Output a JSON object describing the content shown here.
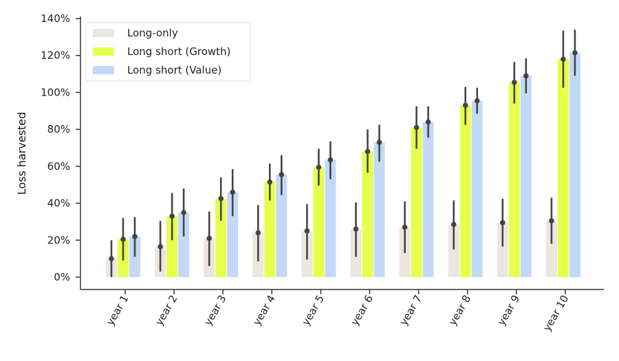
{
  "chart_data": {
    "type": "bar",
    "title": "",
    "xlabel": "",
    "ylabel": "Loss harvested",
    "ylim": [
      0,
      140
    ],
    "yticks": [
      0,
      20,
      40,
      60,
      80,
      100,
      120,
      140
    ],
    "ytick_suffix": "%",
    "grid": false,
    "legend_position": "top-left",
    "categories": [
      "year 1",
      "year 2",
      "year 3",
      "year 4",
      "year 5",
      "year 6",
      "year 7",
      "year 8",
      "year 9",
      "year 10"
    ],
    "series": [
      {
        "name": "Long-only",
        "color": "#ebe6df",
        "values": [
          10,
          16.5,
          21,
          24,
          25,
          26,
          27,
          28.5,
          29.5,
          30.5
        ],
        "error_low": [
          0,
          3,
          6,
          8.5,
          9.5,
          11,
          13,
          15,
          16.5,
          18
        ],
        "error_high": [
          20,
          30.5,
          35.5,
          39,
          39.5,
          40.5,
          41,
          41.5,
          42.5,
          43
        ]
      },
      {
        "name": "Long short (Growth)",
        "color": "#e6ff4d",
        "values": [
          20.5,
          33,
          42.5,
          51.5,
          59.5,
          68,
          81,
          93,
          105.5,
          118
        ],
        "error_low": [
          9,
          20,
          30.5,
          41.5,
          49.5,
          56.5,
          69.5,
          82.5,
          94,
          102.5
        ],
        "error_high": [
          32,
          45.5,
          54,
          61.5,
          69.5,
          80,
          92.5,
          103,
          116.5,
          133.5
        ]
      },
      {
        "name": "Long short (Value)",
        "color": "#c3d9fa",
        "values": [
          22,
          35,
          46,
          55.5,
          63.5,
          73,
          84,
          95.5,
          109,
          121.5
        ],
        "error_low": [
          11,
          22,
          33,
          44.5,
          53,
          62.5,
          75.5,
          88.5,
          99.5,
          109
        ],
        "error_high": [
          32.5,
          48,
          58.5,
          66,
          73.5,
          82.5,
          92.5,
          102.5,
          118.5,
          134
        ]
      }
    ]
  }
}
